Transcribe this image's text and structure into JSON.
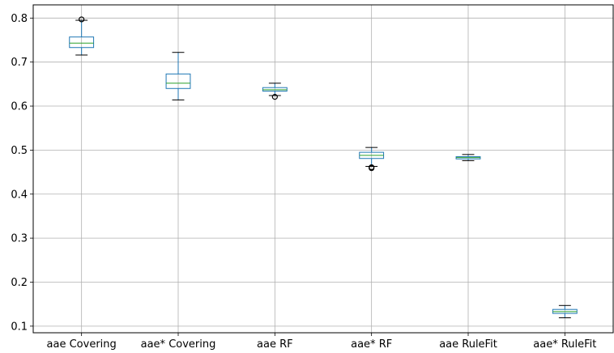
{
  "chart_data": {
    "type": "box",
    "categories": [
      "aae Covering",
      "aae* Covering",
      "aae RF",
      "aae* RF",
      "aae RuleFit",
      "aae* RuleFit"
    ],
    "boxes": [
      {
        "category": "aae Covering",
        "whisker_low": 0.716,
        "q1": 0.733,
        "median": 0.743,
        "q3": 0.757,
        "whisker_high": 0.795,
        "outliers": [
          0.797
        ]
      },
      {
        "category": "aae* Covering",
        "whisker_low": 0.614,
        "q1": 0.64,
        "median": 0.652,
        "q3": 0.673,
        "whisker_high": 0.722,
        "outliers": []
      },
      {
        "category": "aae RF",
        "whisker_low": 0.624,
        "q1": 0.634,
        "median": 0.637,
        "q3": 0.642,
        "whisker_high": 0.652,
        "outliers": [
          0.621
        ]
      },
      {
        "category": "aae* RF",
        "whisker_low": 0.463,
        "q1": 0.481,
        "median": 0.488,
        "q3": 0.495,
        "whisker_high": 0.506,
        "outliers": [
          0.461,
          0.459
        ]
      },
      {
        "category": "aae RuleFit",
        "whisker_low": 0.476,
        "q1": 0.48,
        "median": 0.483,
        "q3": 0.485,
        "whisker_high": 0.49,
        "outliers": []
      },
      {
        "category": "aae* RuleFit",
        "whisker_low": 0.119,
        "q1": 0.129,
        "median": 0.133,
        "q3": 0.138,
        "whisker_high": 0.147,
        "outliers": []
      }
    ],
    "yticks": [
      0.1,
      0.2,
      0.3,
      0.4,
      0.5,
      0.6,
      0.7,
      0.8
    ],
    "ylim": [
      0.085,
      0.83
    ],
    "title": "",
    "xlabel": "",
    "ylabel": "",
    "grid": true,
    "colors": {
      "box": "#1f77b4",
      "median": "#2ca02c",
      "whisker": "#000000",
      "grid": "#b0b0b0",
      "outlier": "#000000"
    }
  }
}
